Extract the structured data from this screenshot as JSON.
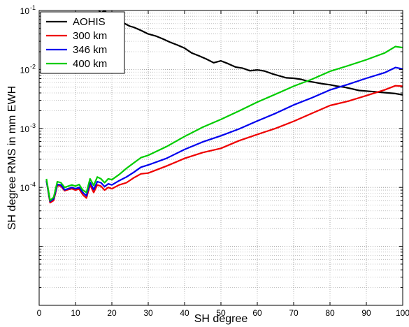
{
  "chart_data": {
    "type": "line",
    "title": "",
    "xlabel": "SH degree",
    "ylabel": "SH degree RMS in mm EWH",
    "xlim": [
      0,
      100
    ],
    "ylim": [
      1e-06,
      0.1
    ],
    "y_scale": "log",
    "grid": true,
    "grid_style": "dotted",
    "legend_location": "top-left",
    "x_ticks": [
      0,
      10,
      20,
      30,
      40,
      50,
      60,
      70,
      80,
      90,
      100
    ],
    "x_tick_labels": [
      "0",
      "10",
      "20",
      "30",
      "40",
      "50",
      "60",
      "70",
      "80",
      "90",
      "100"
    ],
    "y_ticks": [
      0.1,
      0.01,
      0.001,
      0.0001
    ],
    "y_tick_labels": [
      {
        "base": "10",
        "exp": "-1"
      },
      {
        "base": "10",
        "exp": "-2"
      },
      {
        "base": "10",
        "exp": "-3"
      },
      {
        "base": "10",
        "exp": "-4"
      }
    ],
    "series": [
      {
        "name": "AOHIS",
        "color": "#000000",
        "x": [
          15,
          16,
          17,
          18,
          19,
          20,
          21,
          22,
          23,
          24,
          25,
          26,
          28,
          30,
          32,
          34,
          36,
          38,
          40,
          42,
          44,
          46,
          48,
          50,
          52,
          54,
          56,
          58,
          60,
          62,
          64,
          66,
          68,
          70,
          72,
          74,
          76,
          78,
          80,
          82,
          84,
          86,
          88,
          90,
          92,
          94,
          96,
          98,
          100
        ],
        "y": [
          0.15,
          0.11,
          0.09,
          0.1,
          0.085,
          0.075,
          0.072,
          0.068,
          0.063,
          0.058,
          0.054,
          0.052,
          0.046,
          0.04,
          0.037,
          0.033,
          0.029,
          0.026,
          0.023,
          0.019,
          0.017,
          0.015,
          0.013,
          0.014,
          0.0125,
          0.011,
          0.0105,
          0.0095,
          0.0098,
          0.0094,
          0.0085,
          0.0078,
          0.0072,
          0.0071,
          0.0068,
          0.0063,
          0.006,
          0.0057,
          0.0055,
          0.0052,
          0.005,
          0.0047,
          0.0044,
          0.0043,
          0.0042,
          0.0041,
          0.004,
          0.0039,
          0.0037
        ]
      },
      {
        "name": "300 km",
        "color": "#ee0000",
        "x": [
          2,
          3,
          4,
          5,
          6,
          7,
          8,
          9,
          10,
          11,
          12,
          13,
          14,
          15,
          16,
          17,
          18,
          19,
          20,
          22,
          24,
          26,
          28,
          30,
          35,
          40,
          45,
          50,
          55,
          60,
          65,
          70,
          75,
          80,
          85,
          90,
          95,
          98,
          100
        ],
        "y": [
          0.00013,
          5.5e-05,
          6e-05,
          0.000108,
          0.000105,
          8.8e-05,
          9.2e-05,
          9.5e-05,
          9e-05,
          9.4e-05,
          7.5e-05,
          6.6e-05,
          0.00011,
          8.2e-05,
          0.00011,
          0.000105,
          9e-05,
          0.0001,
          9.5e-05,
          0.00011,
          0.00012,
          0.000145,
          0.00017,
          0.000175,
          0.00023,
          0.00031,
          0.00039,
          0.00046,
          0.00062,
          0.00079,
          0.001,
          0.00132,
          0.0018,
          0.00245,
          0.0029,
          0.0036,
          0.0045,
          0.0053,
          0.0052
        ]
      },
      {
        "name": "346 km",
        "color": "#0000ee",
        "x": [
          2,
          3,
          4,
          5,
          6,
          7,
          8,
          9,
          10,
          11,
          12,
          13,
          14,
          15,
          16,
          17,
          18,
          19,
          20,
          22,
          24,
          26,
          28,
          30,
          35,
          40,
          45,
          50,
          55,
          60,
          65,
          70,
          75,
          80,
          85,
          90,
          95,
          98,
          100
        ],
        "y": [
          0.00013,
          5.8e-05,
          6.4e-05,
          0.000112,
          0.00011,
          9.1e-05,
          9.5e-05,
          0.0001,
          9.5e-05,
          0.0001,
          8.2e-05,
          7.2e-05,
          0.000122,
          9.2e-05,
          0.000125,
          0.00012,
          0.000103,
          0.000115,
          0.00011,
          0.00013,
          0.00015,
          0.00018,
          0.00022,
          0.00024,
          0.00031,
          0.00044,
          0.00059,
          0.00075,
          0.00098,
          0.00134,
          0.0018,
          0.0025,
          0.0033,
          0.0045,
          0.0056,
          0.0071,
          0.0088,
          0.0108,
          0.0102
        ]
      },
      {
        "name": "400 km",
        "color": "#00cc00",
        "x": [
          2,
          3,
          4,
          5,
          6,
          7,
          8,
          9,
          10,
          11,
          12,
          13,
          14,
          15,
          16,
          17,
          18,
          19,
          20,
          22,
          24,
          26,
          28,
          30,
          35,
          40,
          45,
          50,
          55,
          60,
          65,
          70,
          75,
          80,
          85,
          90,
          95,
          98,
          100
        ],
        "y": [
          0.00014,
          6e-05,
          6.8e-05,
          0.000125,
          0.00012,
          0.0001,
          0.000105,
          0.00011,
          0.000105,
          0.000112,
          9e-05,
          8.2e-05,
          0.00014,
          0.000108,
          0.00015,
          0.00014,
          0.00012,
          0.00014,
          0.000135,
          0.000165,
          0.00021,
          0.00026,
          0.00032,
          0.00035,
          0.00049,
          0.00073,
          0.00105,
          0.00142,
          0.00198,
          0.0028,
          0.0038,
          0.0052,
          0.0068,
          0.0093,
          0.0116,
          0.0146,
          0.019,
          0.0245,
          0.0235
        ]
      }
    ]
  }
}
